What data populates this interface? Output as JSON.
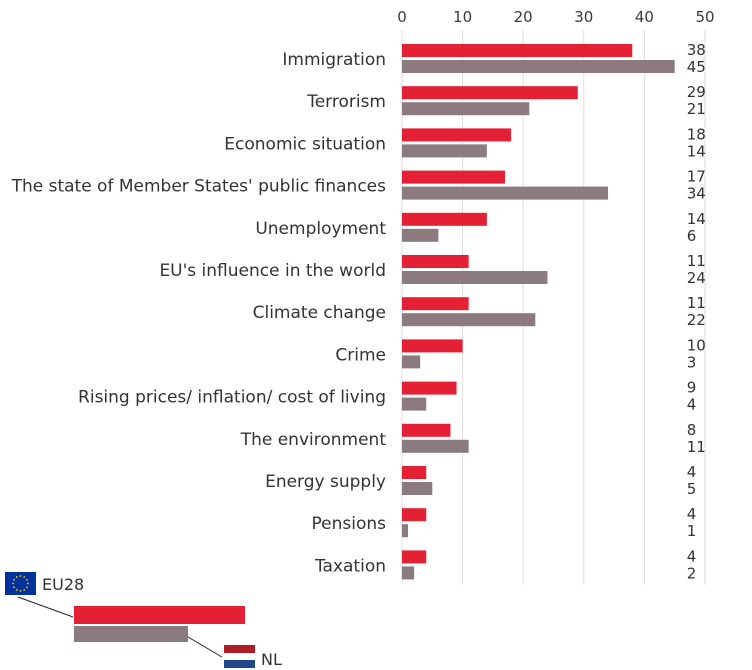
{
  "chart_data": {
    "type": "bar",
    "orientation": "horizontal",
    "categories": [
      "Immigration",
      "Terrorism",
      "Economic situation",
      "The state of Member States' public finances",
      "Unemployment",
      "EU's influence in the world",
      "Climate change",
      "Crime",
      "Rising prices/ inflation/ cost of living",
      "The environment",
      "Energy supply",
      "Pensions",
      "Taxation"
    ],
    "series": [
      {
        "name": "EU28",
        "values": [
          38,
          29,
          18,
          17,
          14,
          11,
          11,
          10,
          9,
          8,
          4,
          4,
          4
        ]
      },
      {
        "name": "NL",
        "values": [
          45,
          21,
          14,
          34,
          6,
          24,
          22,
          3,
          4,
          11,
          5,
          1,
          2
        ]
      }
    ],
    "xlim": [
      0,
      50
    ],
    "xticks": [
      "0",
      "10",
      "20",
      "30",
      "40",
      "50"
    ],
    "axis_position": "top",
    "grid": true,
    "legend": "bottom-left"
  },
  "colors": {
    "eu28": "#e32034",
    "nl": "#8c7b7e",
    "grid": "#dddddd"
  },
  "legend_icons": {
    "eu28": "eu-flag-icon",
    "nl": "netherlands-flag-icon"
  }
}
